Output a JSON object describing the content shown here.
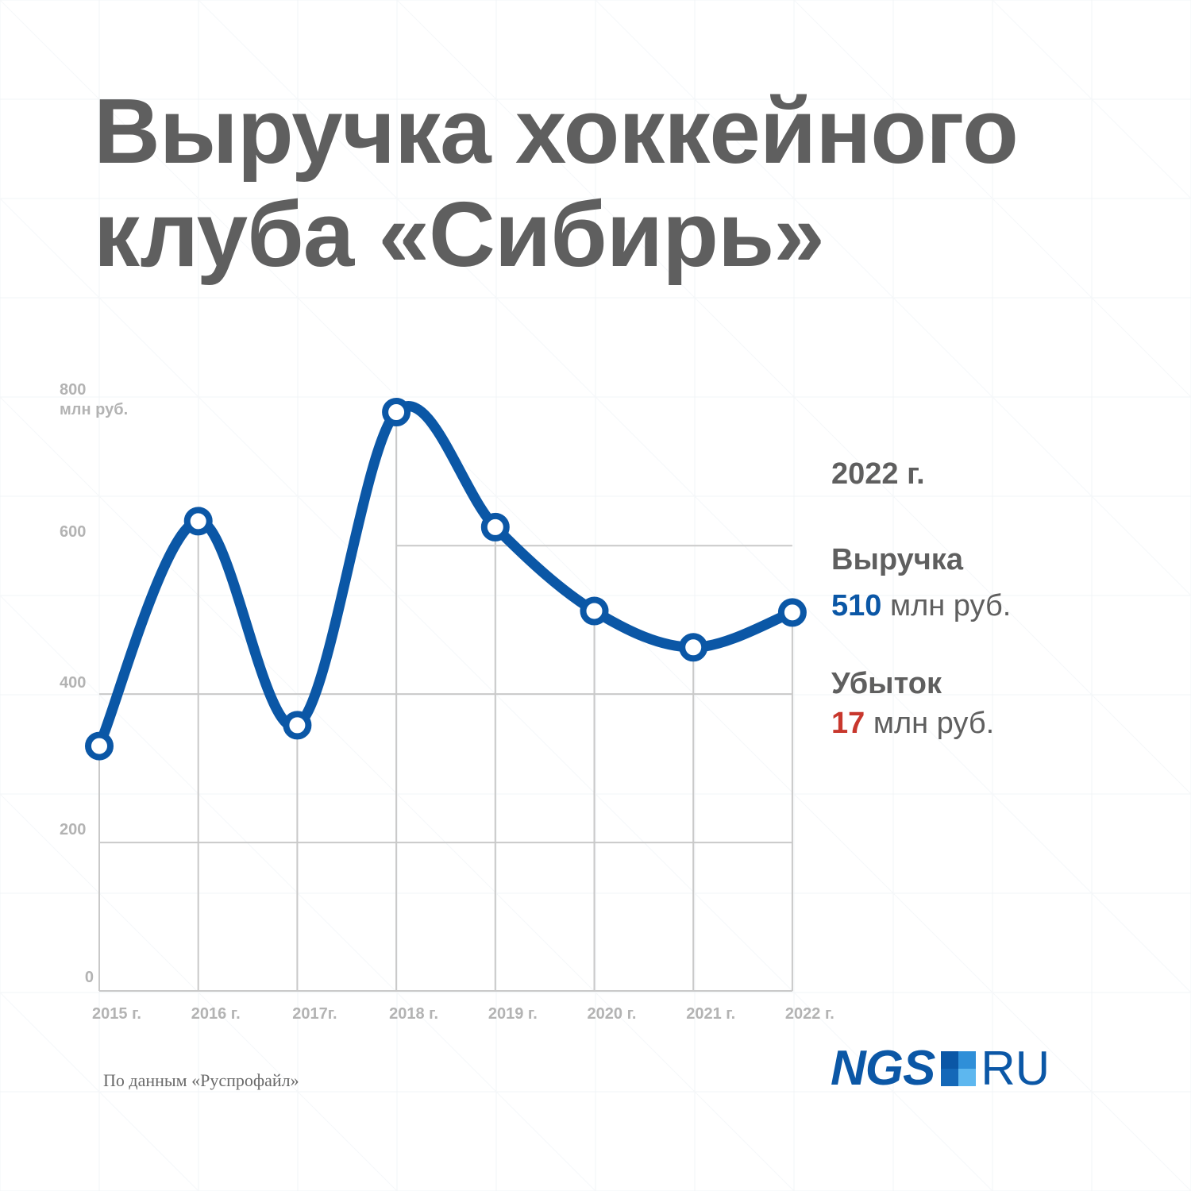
{
  "title": {
    "line1": "Выручка хоккейного",
    "line2": "клуба «Сибирь»"
  },
  "chart_data": {
    "type": "line",
    "x": [
      "2015 г.",
      "2016 г.",
      "2017г.",
      "2018 г.",
      "2019 г.",
      "2020 г.",
      "2021 г.",
      "2022 г."
    ],
    "series": [
      {
        "values": [
          330,
          633,
          358,
          780,
          625,
          512,
          463,
          510
        ],
        "color": "#0b57a6"
      }
    ],
    "y_ticks": [
      {
        "value": 0,
        "label": "0"
      },
      {
        "value": 200,
        "label": "200"
      },
      {
        "value": 400,
        "label": "400"
      },
      {
        "value": 600,
        "label": "600"
      },
      {
        "value": 800,
        "label": "800"
      }
    ],
    "ylabel": "млн руб.",
    "ylim": [
      0,
      800
    ],
    "grid": true
  },
  "summary": {
    "year": "2022 г.",
    "revenue_label": "Выручка",
    "revenue_value": "510",
    "revenue_unit": "млн руб.",
    "loss_label": "Убыток",
    "loss_value": "17",
    "loss_unit": "млн руб."
  },
  "source": "По данным «Руспрофайл»",
  "logo": {
    "text_left": "NGS",
    "text_right": "RU",
    "colors": [
      "#0b57a6",
      "#2f8fd8",
      "#1468b8",
      "#5db7ef"
    ]
  },
  "colors": {
    "line": "#0b57a6",
    "title": "#5f5f5f",
    "grid": "#c9c9c9",
    "loss": "#c8372d"
  }
}
